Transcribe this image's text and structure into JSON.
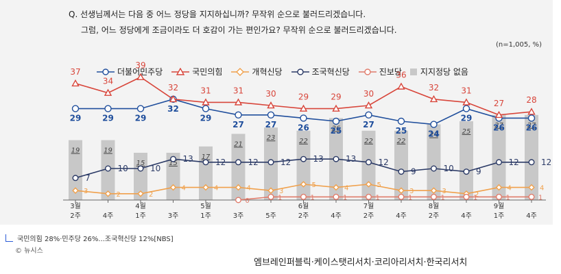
{
  "question_line1": "Q. 선생님께서는 다음 중 어느 정당을 지지하십니까? 무작위 순으로 불러드리겠습니다.",
  "question_line2": "그럼, 어느 정당에게 조금이라도 더 호감이 가는 편인가요? 무작위 순으로 불러드리겠습니다.",
  "unit_note": "(n=1,005, %)",
  "caption": "국민의힘 28%·민주당 26%...조국혁신당 12%[NBS]",
  "credit": "© 뉴시스",
  "source": "엠브레인퍼블릭·케이스탯리서치·코리아리서치·한국리서치",
  "chart_data": {
    "type": "line",
    "categories": [
      [
        "3월",
        "2주"
      ],
      [
        "4주"
      ],
      [
        "4월",
        "1주"
      ],
      [
        "3주"
      ],
      [
        "5월",
        "1주"
      ],
      [
        "3주"
      ],
      [
        "5주"
      ],
      [
        "6월",
        "2주"
      ],
      [
        "4주"
      ],
      [
        "7월",
        "2주"
      ],
      [
        "4주"
      ],
      [
        "8월",
        "2주"
      ],
      [
        "4주"
      ],
      [
        "9월",
        "1주"
      ],
      [
        "4주"
      ]
    ],
    "series": [
      {
        "name": "더불어민주당",
        "color": "#1f4e9c",
        "values": [
          29,
          29,
          29,
          32,
          29,
          27,
          27,
          26,
          25,
          27,
          25,
          24,
          29,
          26,
          26
        ]
      },
      {
        "name": "국민의힘",
        "color": "#d8453a",
        "values": [
          37,
          34,
          39,
          32,
          31,
          31,
          30,
          29,
          29,
          30,
          36,
          32,
          31,
          27,
          28
        ]
      },
      {
        "name": "개혁신당",
        "color": "#f0a04b",
        "values": [
          3,
          2,
          2,
          4,
          4,
          4,
          3,
          5,
          4,
          5,
          3,
          3,
          2,
          4,
          4
        ]
      },
      {
        "name": "조국혁신당",
        "color": "#2b3a66",
        "values": [
          7,
          10,
          10,
          13,
          12,
          12,
          12,
          13,
          13,
          12,
          9,
          10,
          9,
          12,
          12
        ]
      },
      {
        "name": "진보당",
        "color": "#e07b6a",
        "values": [
          null,
          null,
          null,
          null,
          null,
          0,
          1,
          1,
          1,
          1,
          1,
          1,
          1,
          1,
          1
        ]
      }
    ],
    "bars": {
      "name": "지지정당 없음",
      "color": "#c8c8c8",
      "values": [
        19,
        19,
        15,
        15,
        17,
        21,
        23,
        22,
        26,
        22,
        22,
        24,
        25,
        27,
        27
      ]
    },
    "ylim": [
      0,
      42
    ]
  }
}
